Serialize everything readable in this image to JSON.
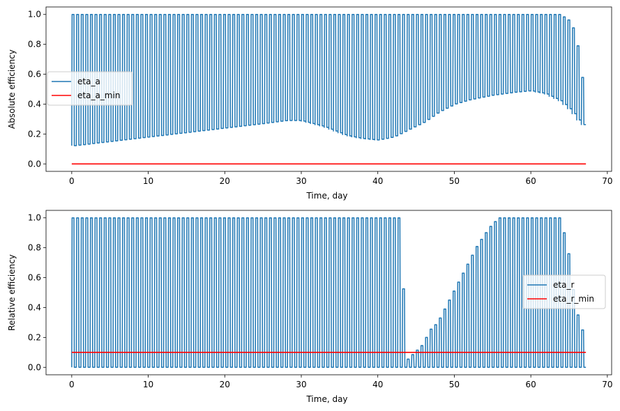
{
  "chart_data": [
    {
      "type": "line",
      "xlabel": "Time, day",
      "ylabel": "Absolute efficiency",
      "xlim": [
        -3.36,
        70.56
      ],
      "ylim": [
        -0.05,
        1.05
      ],
      "xticks": [
        0,
        10,
        20,
        30,
        40,
        50,
        60,
        70
      ],
      "yticks": [
        0.0,
        0.2,
        0.4,
        0.6,
        0.8,
        1.0
      ],
      "xtick_labels": [
        "0",
        "10",
        "20",
        "30",
        "40",
        "50",
        "60",
        "70"
      ],
      "ytick_labels": [
        "0.0",
        "0.2",
        "0.4",
        "0.6",
        "0.8",
        "1.0"
      ],
      "legend_position": "center-left",
      "series": [
        {
          "name": "eta_a",
          "color": "#1f77b4",
          "style": "oscillating",
          "x_start": 0.0,
          "x_end": 67.2,
          "period_days": 0.6,
          "upper": {
            "x": [
              0,
              64,
              65.5,
              66.5,
              67.2
            ],
            "y": [
              1.0,
              1.0,
              0.95,
              0.75,
              0.45
            ]
          },
          "lower": {
            "x": [
              0,
              5,
              10,
              15,
              20,
              25,
              28,
              30,
              33,
              36,
              38,
              40,
              42,
              44,
              46,
              48,
              50,
              52,
              55,
              58,
              60,
              62,
              64,
              65.5,
              66.5,
              67.2
            ],
            "y": [
              0.12,
              0.15,
              0.18,
              0.21,
              0.24,
              0.27,
              0.29,
              0.29,
              0.25,
              0.19,
              0.17,
              0.16,
              0.18,
              0.23,
              0.28,
              0.35,
              0.4,
              0.43,
              0.46,
              0.48,
              0.49,
              0.47,
              0.42,
              0.35,
              0.28,
              0.25
            ]
          }
        },
        {
          "name": "eta_a_min",
          "color": "#ff0000",
          "x": [
            0,
            67.2
          ],
          "y": [
            0.0,
            0.0
          ]
        }
      ]
    },
    {
      "type": "line",
      "xlabel": "Time, day",
      "ylabel": "Relative efficiency",
      "xlim": [
        -3.36,
        70.56
      ],
      "ylim": [
        -0.05,
        1.05
      ],
      "xticks": [
        0,
        10,
        20,
        30,
        40,
        50,
        60,
        70
      ],
      "yticks": [
        0.0,
        0.2,
        0.4,
        0.6,
        0.8,
        1.0
      ],
      "xtick_labels": [
        "0",
        "10",
        "20",
        "30",
        "40",
        "50",
        "60",
        "70"
      ],
      "ytick_labels": [
        "0.0",
        "0.2",
        "0.4",
        "0.6",
        "0.8",
        "1.0"
      ],
      "legend_position": "center-right",
      "series": [
        {
          "name": "eta_r",
          "color": "#1f77b4",
          "style": "oscillating",
          "x_start": 0.0,
          "x_end": 67.2,
          "period_days": 0.6,
          "upper": {
            "x": [
              0,
              43,
              44,
              45,
              46,
              47,
              48,
              49,
              50,
              51,
              52,
              53,
              54,
              55,
              56,
              57,
              58,
              59,
              60,
              61,
              62,
              63,
              64,
              65,
              66,
              67.2
            ],
            "y": [
              1.0,
              1.0,
              0.05,
              0.1,
              0.15,
              0.25,
              0.3,
              0.4,
              0.5,
              0.6,
              0.7,
              0.8,
              0.88,
              0.95,
              1.0,
              1.0,
              1.0,
              1.0,
              1.0,
              1.0,
              1.0,
              1.0,
              1.0,
              0.8,
              0.4,
              0.2
            ]
          },
          "upper_full_until": 43,
          "lower": {
            "x": [
              0,
              67.2
            ],
            "y": [
              0.0,
              0.0
            ]
          }
        },
        {
          "name": "eta_r_min",
          "color": "#ff0000",
          "x": [
            0,
            67.2
          ],
          "y": [
            0.1,
            0.1
          ]
        }
      ]
    }
  ]
}
